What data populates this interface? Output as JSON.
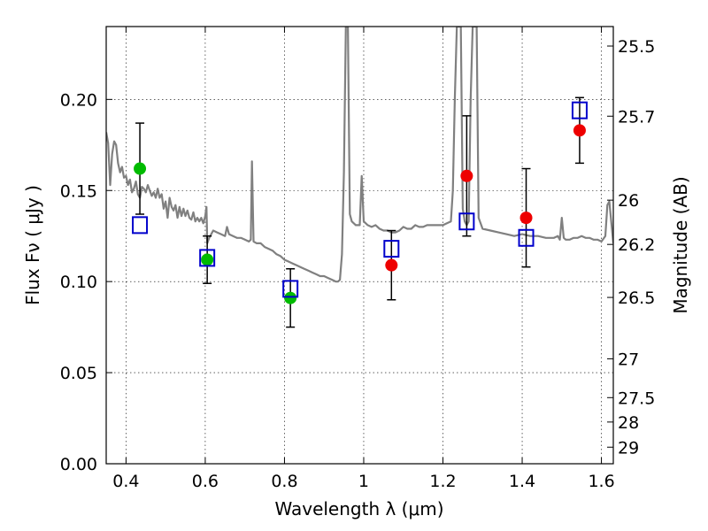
{
  "chart_data": {
    "type": "scatter",
    "title": "",
    "xlabel": "Wavelength  λ (μm)",
    "ylabel": "Flux  Fν  ( μJy )",
    "y2label": "Magnitude (AB)",
    "xlim": [
      0.35,
      1.63
    ],
    "ylim": [
      0.0,
      0.24
    ],
    "grid": true,
    "legend": "none",
    "x_ticks": [
      {
        "value": 0.4,
        "label": "0.4"
      },
      {
        "value": 0.6,
        "label": "0.6"
      },
      {
        "value": 0.8,
        "label": "0.8"
      },
      {
        "value": 1.0,
        "label": "1"
      },
      {
        "value": 1.2,
        "label": "1.2"
      },
      {
        "value": 1.4,
        "label": "1.4"
      },
      {
        "value": 1.6,
        "label": "1.6"
      }
    ],
    "y_ticks": [
      {
        "value": 0.0,
        "label": "0.00"
      },
      {
        "value": 0.05,
        "label": "0.05"
      },
      {
        "value": 0.1,
        "label": "0.10"
      },
      {
        "value": 0.15,
        "label": "0.15"
      },
      {
        "value": 0.2,
        "label": "0.20"
      }
    ],
    "y2_ticks": [
      {
        "label": "25.5",
        "flux": 0.2293
      },
      {
        "label": "25.7",
        "flux": 0.1908
      },
      {
        "label": "26",
        "flux": 0.1447
      },
      {
        "label": "26.2",
        "flux": 0.1204
      },
      {
        "label": "26.5",
        "flux": 0.0913
      },
      {
        "label": "27",
        "flux": 0.0576
      },
      {
        "label": "27.5",
        "flux": 0.0363
      },
      {
        "label": "28",
        "flux": 0.0229
      },
      {
        "label": "29",
        "flux": 0.0091
      }
    ],
    "colors": {
      "spectrum": "#808080",
      "green_points": "#00bb00",
      "red_points": "#ee0000",
      "model_squares": "#0000cc",
      "error_bars": "#000000",
      "grid": "#000000"
    },
    "series": [
      {
        "kind": "line",
        "points": [
          [
            0.35,
            0.182
          ],
          [
            0.355,
            0.176
          ],
          [
            0.36,
            0.153
          ],
          [
            0.365,
            0.17
          ],
          [
            0.37,
            0.177
          ],
          [
            0.375,
            0.175
          ],
          [
            0.38,
            0.165
          ],
          [
            0.385,
            0.16
          ],
          [
            0.39,
            0.163
          ],
          [
            0.395,
            0.157
          ],
          [
            0.4,
            0.158
          ],
          [
            0.405,
            0.153
          ],
          [
            0.41,
            0.156
          ],
          [
            0.415,
            0.149
          ],
          [
            0.42,
            0.151
          ],
          [
            0.425,
            0.155
          ],
          [
            0.43,
            0.148
          ],
          [
            0.435,
            0.146
          ],
          [
            0.44,
            0.152
          ],
          [
            0.445,
            0.151
          ],
          [
            0.45,
            0.149
          ],
          [
            0.455,
            0.153
          ],
          [
            0.46,
            0.15
          ],
          [
            0.465,
            0.147
          ],
          [
            0.47,
            0.149
          ],
          [
            0.475,
            0.146
          ],
          [
            0.48,
            0.151
          ],
          [
            0.485,
            0.146
          ],
          [
            0.49,
            0.148
          ],
          [
            0.495,
            0.14
          ],
          [
            0.5,
            0.144
          ],
          [
            0.505,
            0.135
          ],
          [
            0.51,
            0.146
          ],
          [
            0.515,
            0.141
          ],
          [
            0.52,
            0.139
          ],
          [
            0.525,
            0.142
          ],
          [
            0.53,
            0.135
          ],
          [
            0.535,
            0.141
          ],
          [
            0.54,
            0.136
          ],
          [
            0.545,
            0.14
          ],
          [
            0.55,
            0.136
          ],
          [
            0.555,
            0.139
          ],
          [
            0.56,
            0.135
          ],
          [
            0.565,
            0.134
          ],
          [
            0.57,
            0.138
          ],
          [
            0.575,
            0.133
          ],
          [
            0.58,
            0.135
          ],
          [
            0.585,
            0.133
          ],
          [
            0.59,
            0.135
          ],
          [
            0.595,
            0.132
          ],
          [
            0.6,
            0.136
          ],
          [
            0.603,
            0.141
          ],
          [
            0.605,
            0.121
          ],
          [
            0.61,
            0.124
          ],
          [
            0.62,
            0.128
          ],
          [
            0.63,
            0.127
          ],
          [
            0.64,
            0.126
          ],
          [
            0.65,
            0.125
          ],
          [
            0.655,
            0.13
          ],
          [
            0.66,
            0.126
          ],
          [
            0.67,
            0.125
          ],
          [
            0.68,
            0.124
          ],
          [
            0.69,
            0.124
          ],
          [
            0.7,
            0.123
          ],
          [
            0.71,
            0.122
          ],
          [
            0.715,
            0.123
          ],
          [
            0.718,
            0.166
          ],
          [
            0.722,
            0.122
          ],
          [
            0.73,
            0.121
          ],
          [
            0.74,
            0.121
          ],
          [
            0.75,
            0.119
          ],
          [
            0.76,
            0.118
          ],
          [
            0.77,
            0.117
          ],
          [
            0.78,
            0.115
          ],
          [
            0.79,
            0.114
          ],
          [
            0.8,
            0.112
          ],
          [
            0.81,
            0.111
          ],
          [
            0.82,
            0.11
          ],
          [
            0.83,
            0.109
          ],
          [
            0.84,
            0.108
          ],
          [
            0.85,
            0.107
          ],
          [
            0.86,
            0.106
          ],
          [
            0.87,
            0.105
          ],
          [
            0.88,
            0.104
          ],
          [
            0.89,
            0.103
          ],
          [
            0.9,
            0.103
          ],
          [
            0.91,
            0.102
          ],
          [
            0.92,
            0.101
          ],
          [
            0.93,
            0.1
          ],
          [
            0.935,
            0.1
          ],
          [
            0.94,
            0.101
          ],
          [
            0.945,
            0.115
          ],
          [
            0.95,
            0.16
          ],
          [
            0.955,
            0.24
          ],
          [
            0.96,
            0.24
          ],
          [
            0.965,
            0.137
          ],
          [
            0.97,
            0.133
          ],
          [
            0.98,
            0.131
          ],
          [
            0.99,
            0.131
          ],
          [
            0.995,
            0.158
          ],
          [
            1.0,
            0.133
          ],
          [
            1.01,
            0.131
          ],
          [
            1.02,
            0.13
          ],
          [
            1.03,
            0.131
          ],
          [
            1.04,
            0.129
          ],
          [
            1.05,
            0.128
          ],
          [
            1.06,
            0.128
          ],
          [
            1.07,
            0.127
          ],
          [
            1.08,
            0.127
          ],
          [
            1.09,
            0.128
          ],
          [
            1.1,
            0.13
          ],
          [
            1.11,
            0.129
          ],
          [
            1.12,
            0.129
          ],
          [
            1.13,
            0.131
          ],
          [
            1.14,
            0.13
          ],
          [
            1.15,
            0.13
          ],
          [
            1.16,
            0.131
          ],
          [
            1.17,
            0.131
          ],
          [
            1.18,
            0.131
          ],
          [
            1.19,
            0.131
          ],
          [
            1.2,
            0.131
          ],
          [
            1.21,
            0.132
          ],
          [
            1.22,
            0.133
          ],
          [
            1.225,
            0.15
          ],
          [
            1.23,
            0.2
          ],
          [
            1.235,
            0.24
          ],
          [
            1.245,
            0.24
          ],
          [
            1.25,
            0.14
          ],
          [
            1.255,
            0.133
          ],
          [
            1.26,
            0.131
          ],
          [
            1.265,
            0.133
          ],
          [
            1.27,
            0.2
          ],
          [
            1.275,
            0.24
          ],
          [
            1.28,
            0.24
          ],
          [
            1.285,
            0.24
          ],
          [
            1.29,
            0.135
          ],
          [
            1.3,
            0.129
          ],
          [
            1.32,
            0.128
          ],
          [
            1.34,
            0.127
          ],
          [
            1.36,
            0.126
          ],
          [
            1.38,
            0.125
          ],
          [
            1.4,
            0.126
          ],
          [
            1.42,
            0.125
          ],
          [
            1.44,
            0.125
          ],
          [
            1.46,
            0.124
          ],
          [
            1.48,
            0.124
          ],
          [
            1.49,
            0.125
          ],
          [
            1.495,
            0.123
          ],
          [
            1.5,
            0.135
          ],
          [
            1.505,
            0.124
          ],
          [
            1.51,
            0.123
          ],
          [
            1.52,
            0.123
          ],
          [
            1.53,
            0.124
          ],
          [
            1.54,
            0.124
          ],
          [
            1.55,
            0.125
          ],
          [
            1.56,
            0.124
          ],
          [
            1.57,
            0.124
          ],
          [
            1.58,
            0.123
          ],
          [
            1.59,
            0.123
          ],
          [
            1.6,
            0.122
          ],
          [
            1.61,
            0.125
          ],
          [
            1.615,
            0.142
          ],
          [
            1.62,
            0.144
          ],
          [
            1.63,
            0.121
          ]
        ]
      },
      {
        "kind": "points",
        "marker": "circle",
        "points": [
          {
            "x": 0.435,
            "y": 0.162,
            "yerr": 0.025
          },
          {
            "x": 0.605,
            "y": 0.112,
            "yerr": 0.013
          },
          {
            "x": 0.815,
            "y": 0.091,
            "yerr": 0.016
          }
        ]
      },
      {
        "kind": "points",
        "marker": "circle",
        "points": [
          {
            "x": 1.07,
            "y": 0.109,
            "yerr": 0.019
          },
          {
            "x": 1.26,
            "y": 0.158,
            "yerr": 0.033
          },
          {
            "x": 1.41,
            "y": 0.135,
            "yerr": 0.027
          },
          {
            "x": 1.545,
            "y": 0.183,
            "yerr": 0.018
          }
        ]
      },
      {
        "kind": "points",
        "marker": "square",
        "points": [
          {
            "x": 0.435,
            "y": 0.131
          },
          {
            "x": 0.605,
            "y": 0.113
          },
          {
            "x": 0.815,
            "y": 0.096
          },
          {
            "x": 1.07,
            "y": 0.118
          },
          {
            "x": 1.26,
            "y": 0.133
          },
          {
            "x": 1.41,
            "y": 0.124
          },
          {
            "x": 1.545,
            "y": 0.194
          }
        ]
      }
    ]
  }
}
